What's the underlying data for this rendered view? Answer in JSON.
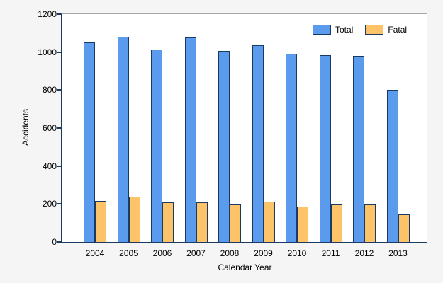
{
  "figure": {
    "background_color": "#f5f5f5",
    "plot_background_color": "#ffffff",
    "plot_frame_color": "#a6a6a6",
    "axis_line_color": "#1b3a63",
    "text_color": "#000000"
  },
  "chart_data": {
    "type": "bar",
    "xlabel": "Calendar Year",
    "ylabel": "Accidents",
    "categories": [
      "2004",
      "2005",
      "2006",
      "2007",
      "2008",
      "2009",
      "2010",
      "2011",
      "2012",
      "2013"
    ],
    "series": [
      {
        "name": "Total",
        "color": "#5b9bee",
        "border_color": "#1b3a63",
        "values": [
          1050,
          1080,
          1012,
          1078,
          1005,
          1035,
          993,
          983,
          979,
          800
        ]
      },
      {
        "name": "Fatal",
        "color": "#fcc369",
        "border_color": "#1b3a63",
        "values": [
          215,
          238,
          209,
          207,
          197,
          213,
          187,
          197,
          198,
          145
        ]
      }
    ],
    "ylim": [
      0,
      1200
    ],
    "yticks": [
      0,
      200,
      400,
      600,
      800,
      1000,
      1200
    ],
    "grid": false,
    "legend_position": "top-right-inside"
  }
}
